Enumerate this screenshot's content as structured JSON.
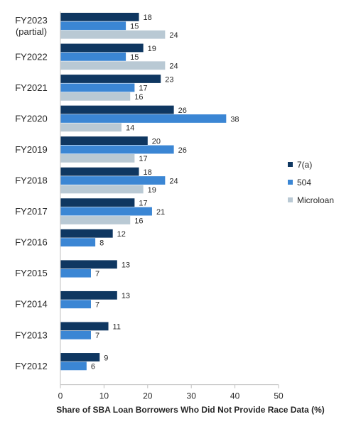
{
  "chart_data": {
    "type": "bar",
    "orientation": "horizontal",
    "categories": [
      [
        "FY2023",
        "(partial)"
      ],
      [
        "FY2022"
      ],
      [
        "FY2021"
      ],
      [
        "FY2020"
      ],
      [
        "FY2019"
      ],
      [
        "FY2018"
      ],
      [
        "FY2017"
      ],
      [
        "FY2016"
      ],
      [
        "FY2015"
      ],
      [
        "FY2014"
      ],
      [
        "FY2013"
      ],
      [
        "FY2012"
      ]
    ],
    "series": [
      {
        "name": "7(a)",
        "color": "#0f3761",
        "values": [
          18,
          19,
          23,
          26,
          20,
          18,
          17,
          12,
          13,
          13,
          11,
          9
        ]
      },
      {
        "name": "504",
        "color": "#3b86d4",
        "values": [
          15,
          15,
          17,
          38,
          26,
          24,
          21,
          8,
          7,
          7,
          7,
          6
        ]
      },
      {
        "name": "Microloan",
        "color": "#b9c9d4",
        "values": [
          24,
          24,
          16,
          14,
          17,
          19,
          16,
          null,
          null,
          null,
          null,
          null
        ]
      }
    ],
    "xlabel": "Share of SBA Loan Borrowers Who Did Not Provide Race Data (%)",
    "xlim": [
      0,
      50
    ],
    "xticks": [
      0,
      10,
      20,
      30,
      40,
      50
    ],
    "grid": false,
    "legend_position": "right"
  }
}
